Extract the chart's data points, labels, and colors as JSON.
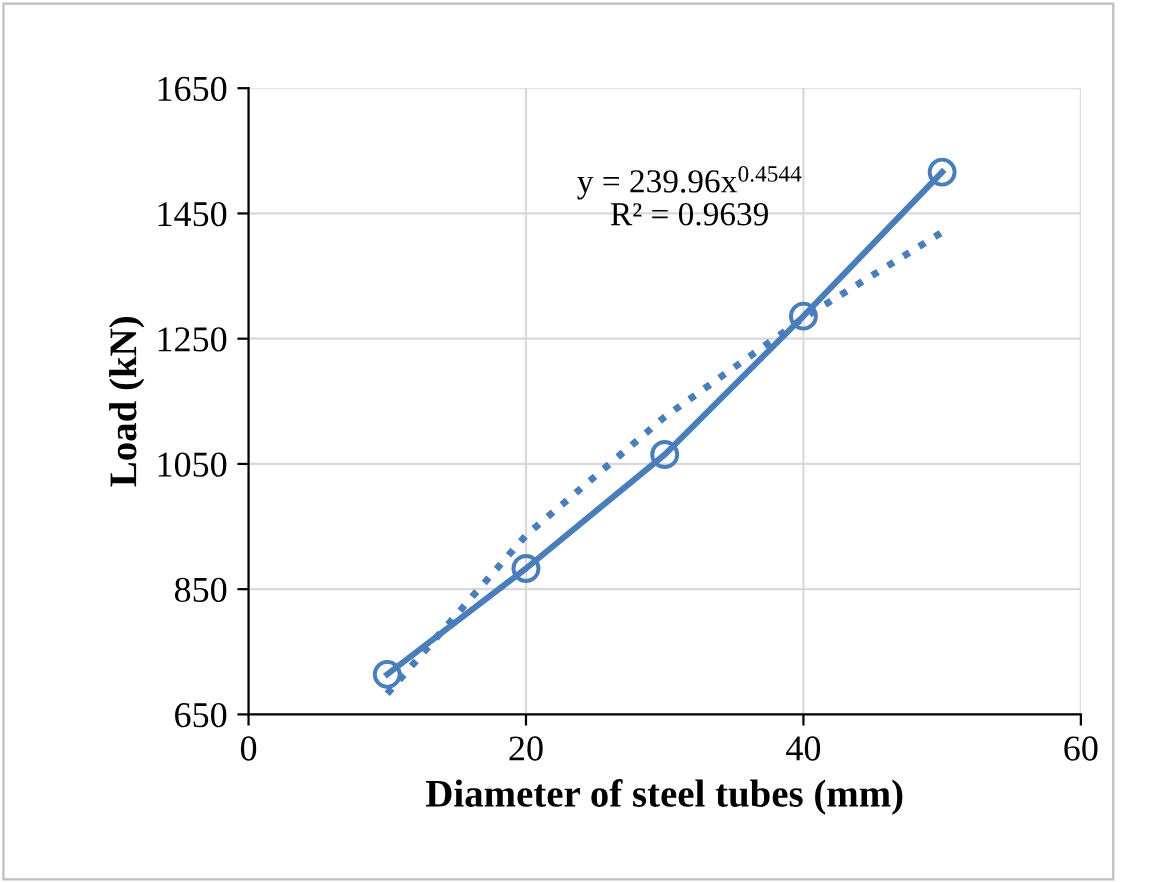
{
  "chart_data": {
    "type": "line",
    "xlabel": "Diameter of steel tubes (mm)",
    "ylabel": "Load (kN)",
    "series": [
      {
        "x": [
          10,
          20,
          30,
          40,
          50
        ],
        "values": [
          714,
          883,
          1065,
          1286,
          1516
        ],
        "color": "#4a7ebb",
        "marker": "circle",
        "line_style": "solid"
      },
      {
        "x": [
          10,
          20,
          30,
          40,
          50
        ],
        "values": [
          683,
          936,
          1125,
          1283,
          1420
        ],
        "color": "#4a7ebb",
        "marker": "none",
        "line_style": "dotted"
      }
    ],
    "annotations": [
      "y = 239.96x$^{0.4544}$\nR² = 0.9639"
    ],
    "xlim": [
      0,
      60
    ],
    "xticks": [
      0,
      20,
      40,
      60
    ],
    "ylim": [
      650,
      1650
    ],
    "yticks": [
      650,
      850,
      1050,
      1250,
      1450,
      1650
    ],
    "grid": true,
    "legend": false
  }
}
